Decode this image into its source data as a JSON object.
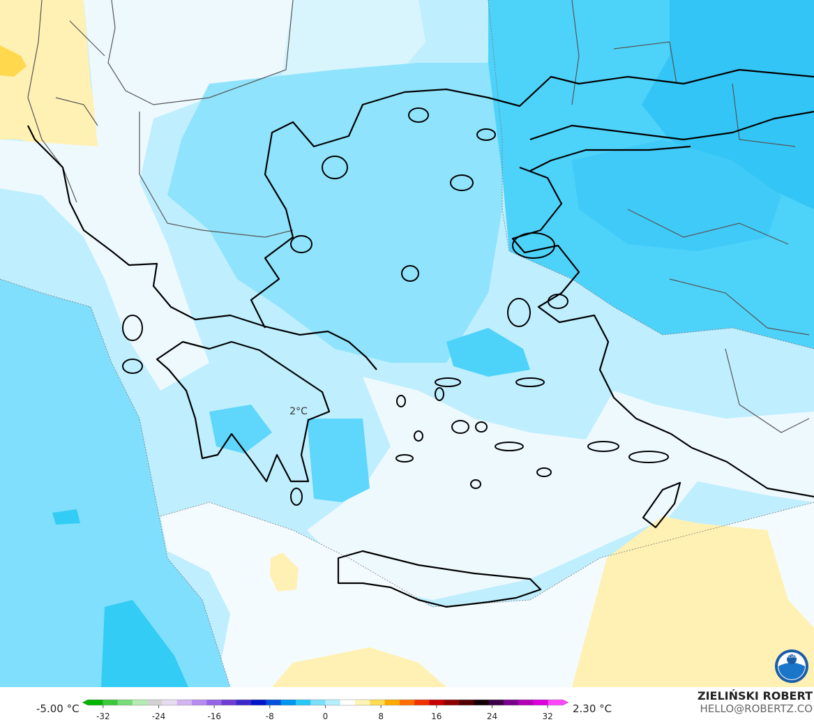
{
  "map": {
    "label": "2°C"
  },
  "colorbar": {
    "min_label": "-5.00 °C",
    "max_label": "2.30 °C",
    "lim": [
      -35,
      35
    ],
    "ticks": [
      -32,
      -24,
      -16,
      -8,
      0,
      8,
      16,
      24,
      32
    ],
    "colors": [
      "#00b400",
      "#3cc83c",
      "#78dc78",
      "#b4ecb4",
      "#d2d2d2",
      "#e6dcf0",
      "#d2b4f0",
      "#b48cf0",
      "#9664e6",
      "#6e3cd2",
      "#3c28c8",
      "#0014c8",
      "#0050dc",
      "#0096f0",
      "#28c8f8",
      "#78e0fc",
      "#b4f0fe",
      "#ffffff",
      "#fff5b4",
      "#ffdc50",
      "#ffaa00",
      "#ff6e00",
      "#f03200",
      "#c80000",
      "#8c0000",
      "#500000",
      "#140000",
      "#3c0046",
      "#78008c",
      "#b400b4",
      "#dc00dc",
      "#ff46ff"
    ]
  },
  "credit": {
    "author": "ZIELIŃSKI ROBERT",
    "email": "HELLO@ROBERTZ.CO"
  },
  "logo": "NOAA"
}
